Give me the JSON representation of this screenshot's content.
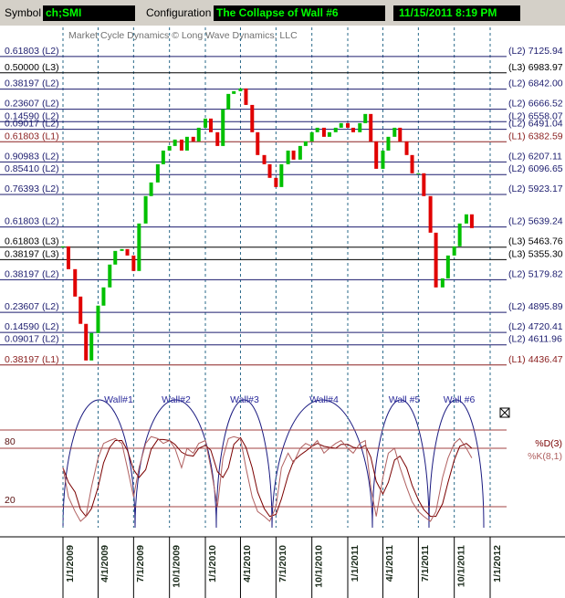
{
  "toolbar": {
    "symbol_label": "Symbol",
    "symbol": "ch;SMI",
    "config_label": "Configuration",
    "config": "The Collapse of Wall #6",
    "timestamp": "11/15/2011 8:19 PM"
  },
  "chart_data": [
    {
      "type": "candlestick",
      "subtitle": "Market Cycle Dynamics © Long Wave Dynamics, LLC",
      "up_color": "#00c000",
      "down_color": "#e00000",
      "x": [
        "1/1/2009",
        "1/15/2009",
        "2/1/2009",
        "2/15/2009",
        "3/1/2009",
        "3/15/2009",
        "4/1/2009",
        "4/15/2009",
        "5/1/2009",
        "5/15/2009",
        "6/1/2009",
        "6/15/2009",
        "7/1/2009",
        "7/15/2009",
        "8/1/2009",
        "8/15/2009",
        "9/1/2009",
        "9/15/2009",
        "10/1/2009",
        "10/15/2009",
        "11/1/2009",
        "11/15/2009",
        "12/1/2009",
        "12/15/2009",
        "1/1/2010",
        "1/15/2010",
        "2/1/2010",
        "2/15/2010",
        "3/1/2010",
        "3/15/2010",
        "4/1/2010",
        "4/15/2010",
        "5/1/2010",
        "5/15/2010",
        "6/1/2010",
        "6/15/2010",
        "7/1/2010",
        "7/15/2010",
        "8/1/2010",
        "8/15/2010",
        "9/1/2010",
        "9/15/2010",
        "10/1/2010",
        "10/15/2010",
        "11/1/2010",
        "11/15/2010",
        "12/1/2010",
        "12/15/2010",
        "1/1/2011",
        "1/15/2011",
        "2/1/2011",
        "2/15/2011",
        "3/1/2011",
        "3/15/2011",
        "4/1/2011",
        "4/15/2011",
        "5/1/2011",
        "5/15/2011",
        "6/1/2011",
        "6/15/2011",
        "7/1/2011",
        "7/15/2011",
        "8/1/2011",
        "8/15/2011",
        "9/1/2011",
        "9/15/2011",
        "10/1/2011",
        "10/15/2011",
        "11/1/2011",
        "11/15/2011"
      ],
      "values": [
        5471,
        5272,
        5033,
        4795,
        4476,
        4715,
        4954,
        5113,
        5312,
        5431,
        5447,
        5391,
        5256,
        5670,
        5909,
        6028,
        6187,
        6306,
        6346,
        6402,
        6306,
        6426,
        6386,
        6505,
        6585,
        6466,
        6346,
        6665,
        6800,
        6824,
        6848,
        6704,
        6466,
        6267,
        6187,
        6068,
        5988,
        6187,
        6306,
        6227,
        6346,
        6386,
        6466,
        6505,
        6426,
        6466,
        6505,
        6545,
        6505,
        6466,
        6545,
        6625,
        6386,
        6147,
        6306,
        6426,
        6505,
        6386,
        6267,
        6108,
        6108,
        5909,
        5590,
        5113,
        5192,
        5391,
        5471,
        5670,
        5750,
        5630
      ],
      "xlim": [
        "1/1/2009",
        "1/1/2012"
      ],
      "xticks": [
        "1/1/2009",
        "4/1/2009",
        "7/1/2009",
        "10/1/2009",
        "1/1/2010",
        "4/1/2010",
        "7/1/2010",
        "10/1/2010",
        "1/1/2011",
        "4/1/2011",
        "7/1/2011",
        "10/1/2011",
        "1/1/2012"
      ],
      "ylim": [
        4180,
        7380
      ],
      "levels": [
        {
          "ratio": "0.61803",
          "tag": "(L2)",
          "price": 7125.94,
          "color": "#1c1c6e"
        },
        {
          "ratio": "0.50000",
          "tag": "(L3)",
          "price": 6983.97,
          "color": "#000000"
        },
        {
          "ratio": "0.38197",
          "tag": "(L2)",
          "price": {
            "value": 6842,
            "label": "6842.00"
          },
          "color": "#1c1c6e"
        },
        {
          "ratio": "0.23607",
          "tag": "(L2)",
          "price": 6666.52,
          "color": "#1c1c6e"
        },
        {
          "ratio": "0.14590",
          "tag": "(L2)",
          "price": 6558.07,
          "color": "#1c1c6e"
        },
        {
          "ratio": "0.09017",
          "tag": "(L2)",
          "price": 6491.04,
          "color": "#1c1c6e"
        },
        {
          "ratio": "0.61803",
          "tag": "(L1)",
          "price": 6382.59,
          "color": "#8b2020"
        },
        {
          "ratio": "0.90983",
          "tag": "(L2)",
          "price": 6207.11,
          "color": "#1c1c6e"
        },
        {
          "ratio": "0.85410",
          "tag": "(L2)",
          "price": 6096.65,
          "color": "#1c1c6e"
        },
        {
          "ratio": "0.76393",
          "tag": "(L2)",
          "price": 5923.17,
          "color": "#1c1c6e"
        },
        {
          "ratio": "0.61803",
          "tag": "(L2)",
          "price": 5639.24,
          "color": "#1c1c6e"
        },
        {
          "ratio": "0.61803",
          "tag": "(L3)",
          "price": 5463.76,
          "color": "#000000"
        },
        {
          "ratio": "0.38197",
          "tag": "(L3)",
          "price": {
            "value": 5355.3,
            "label": "5355.30"
          },
          "color": "#000000"
        },
        {
          "ratio": "0.38197",
          "tag": "(L2)",
          "price": 5179.82,
          "color": "#1c1c6e"
        },
        {
          "ratio": "0.23607",
          "tag": "(L2)",
          "price": 4895.89,
          "color": "#1c1c6e"
        },
        {
          "ratio": "0.14590",
          "tag": "(L2)",
          "price": 4720.41,
          "color": "#1c1c6e"
        },
        {
          "ratio": "0.09017",
          "tag": "(L2)",
          "price": 4611.96,
          "color": "#1c1c6e"
        },
        {
          "ratio": "0.38197",
          "tag": "(L1)",
          "price": 4436.47,
          "color": "#8b2020"
        }
      ],
      "annotations": [
        "Wall#1",
        "Wall#2",
        "Wall#3",
        "Wall#4",
        "Wall #5",
        "Wall #6"
      ]
    },
    {
      "type": "line",
      "x": [
        "1/1/2009",
        "1/15/2009",
        "2/1/2009",
        "2/15/2009",
        "3/1/2009",
        "3/15/2009",
        "4/1/2009",
        "4/15/2009",
        "5/1/2009",
        "5/15/2009",
        "6/1/2009",
        "6/15/2009",
        "7/1/2009",
        "7/15/2009",
        "8/1/2009",
        "8/15/2009",
        "9/1/2009",
        "9/15/2009",
        "10/1/2009",
        "10/15/2009",
        "11/1/2009",
        "11/15/2009",
        "12/1/2009",
        "12/15/2009",
        "1/1/2010",
        "1/15/2010",
        "2/1/2010",
        "2/15/2010",
        "3/1/2010",
        "3/15/2010",
        "4/1/2010",
        "4/15/2010",
        "5/1/2010",
        "5/15/2010",
        "6/1/2010",
        "6/15/2010",
        "7/1/2010",
        "7/15/2010",
        "8/1/2010",
        "8/15/2010",
        "9/1/2010",
        "9/15/2010",
        "10/1/2010",
        "10/15/2010",
        "11/1/2010",
        "11/15/2010",
        "12/1/2010",
        "12/15/2010",
        "1/1/2011",
        "1/15/2011",
        "2/1/2011",
        "2/15/2011",
        "3/1/2011",
        "3/15/2011",
        "4/1/2011",
        "4/15/2011",
        "5/1/2011",
        "5/15/2011",
        "6/1/2011",
        "6/15/2011",
        "7/1/2011",
        "7/15/2011",
        "8/1/2011",
        "8/15/2011",
        "9/1/2011",
        "9/15/2011",
        "10/1/2011",
        "10/15/2011",
        "11/1/2011",
        "11/15/2011"
      ],
      "ylim": [
        0,
        100
      ],
      "yticks": [
        20,
        80
      ],
      "grid_color": "#a04040",
      "series": [
        {
          "name": "%D(3)",
          "color": "#7a0000",
          "values": [
            60,
            45,
            35,
            17,
            10,
            18,
            40,
            65,
            81,
            88,
            88,
            78,
            58,
            50,
            58,
            79,
            89,
            89,
            88,
            84,
            76,
            73,
            72,
            80,
            83,
            78,
            56,
            50,
            60,
            84,
            91,
            81,
            60,
            35,
            18,
            10,
            12,
            28,
            52,
            67,
            73,
            77,
            82,
            85,
            82,
            81,
            80,
            84,
            84,
            81,
            80,
            83,
            71,
            46,
            33,
            45,
            68,
            72,
            60,
            42,
            27,
            17,
            10,
            10,
            23,
            45,
            68,
            82,
            85,
            80
          ]
        },
        {
          "name": "%K(8,1)",
          "color": "#b06060",
          "values": [
            60,
            30,
            15,
            5,
            10,
            40,
            70,
            85,
            88,
            90,
            85,
            60,
            30,
            60,
            85,
            92,
            90,
            85,
            88,
            80,
            60,
            80,
            75,
            85,
            88,
            60,
            20,
            70,
            90,
            92,
            90,
            60,
            30,
            15,
            10,
            5,
            20,
            60,
            75,
            65,
            80,
            85,
            82,
            88,
            75,
            80,
            85,
            88,
            80,
            75,
            85,
            88,
            40,
            10,
            50,
            75,
            80,
            60,
            40,
            25,
            15,
            10,
            5,
            15,
            50,
            70,
            85,
            90,
            80,
            70
          ]
        }
      ]
    }
  ]
}
